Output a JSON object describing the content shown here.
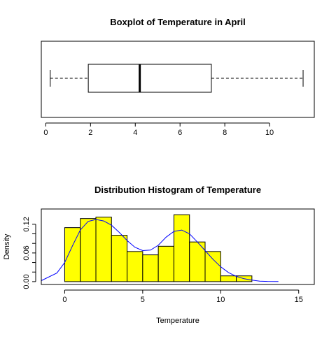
{
  "chart_data": [
    {
      "type": "boxplot",
      "title": "Boxplot of Temperature in April",
      "xlabel": "",
      "ylabel": "",
      "orientation": "horizontal",
      "xlim": [
        -0.2,
        12.0
      ],
      "xticks": [
        0,
        2,
        4,
        6,
        8,
        10
      ],
      "stats": {
        "min": 0.2,
        "q1": 1.9,
        "median": 4.2,
        "q3": 7.4,
        "max": 11.5
      },
      "colors": {
        "box_fill": "#ffffff",
        "stroke": "#000000"
      }
    },
    {
      "type": "histogram",
      "title": "Distribution Histogram of Temperature",
      "xlabel": "Temperature",
      "ylabel": "Density",
      "xlim": [
        -1.5,
        16.0
      ],
      "ylim": [
        -0.006,
        0.152
      ],
      "xticks": [
        0,
        5,
        10,
        15
      ],
      "yticks": [
        0.0,
        0.06,
        0.12
      ],
      "ytick_labels": [
        "0.00",
        "0.06",
        "0.12"
      ],
      "yticks_unlabeled": [
        0.02,
        0.04,
        0.08,
        0.1
      ],
      "bins": [
        {
          "x0": 0.0,
          "x1": 1.0,
          "density": 0.113
        },
        {
          "x0": 1.0,
          "x1": 2.0,
          "density": 0.132
        },
        {
          "x0": 2.0,
          "x1": 3.0,
          "density": 0.135
        },
        {
          "x0": 3.0,
          "x1": 4.0,
          "density": 0.097
        },
        {
          "x0": 4.0,
          "x1": 5.0,
          "density": 0.063
        },
        {
          "x0": 5.0,
          "x1": 6.0,
          "density": 0.056
        },
        {
          "x0": 6.0,
          "x1": 7.0,
          "density": 0.074
        },
        {
          "x0": 7.0,
          "x1": 8.0,
          "density": 0.14
        },
        {
          "x0": 8.0,
          "x1": 9.0,
          "density": 0.083
        },
        {
          "x0": 9.0,
          "x1": 10.0,
          "density": 0.063
        },
        {
          "x0": 10.0,
          "x1": 11.0,
          "density": 0.012
        },
        {
          "x0": 11.0,
          "x1": 12.0,
          "density": 0.012
        }
      ],
      "density_curve": {
        "x": [
          -1.5,
          -0.5,
          0.0,
          0.5,
          1.0,
          1.5,
          2.0,
          2.5,
          3.0,
          3.5,
          4.0,
          4.5,
          5.0,
          5.5,
          6.0,
          6.5,
          7.0,
          7.5,
          8.0,
          8.5,
          9.0,
          9.5,
          10.0,
          10.5,
          11.0,
          11.5,
          12.0,
          12.5,
          13.0,
          13.7
        ],
        "y": [
          0.002,
          0.018,
          0.04,
          0.075,
          0.108,
          0.126,
          0.13,
          0.127,
          0.118,
          0.103,
          0.086,
          0.072,
          0.065,
          0.066,
          0.076,
          0.093,
          0.105,
          0.108,
          0.1,
          0.083,
          0.065,
          0.047,
          0.031,
          0.019,
          0.011,
          0.006,
          0.003,
          0.001,
          0.0005,
          0.0002
        ],
        "color": "#0000ff"
      },
      "colors": {
        "bar_fill": "#ffff00",
        "stroke": "#000000"
      }
    }
  ]
}
